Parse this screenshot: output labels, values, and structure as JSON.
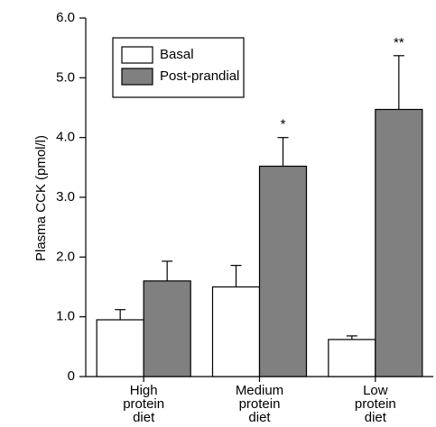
{
  "chart_data": {
    "type": "bar",
    "y_label": "Plasma CCK (pmol/l)",
    "categories": [
      "High protein diet",
      "Medium protein diet",
      "Low protein diet"
    ],
    "series": [
      {
        "name": "Basal",
        "color": "#ffffff",
        "values": [
          0.95,
          1.5,
          0.62
        ],
        "errors": [
          0.17,
          0.36,
          0.06
        ]
      },
      {
        "name": "Post-prandial",
        "color": "#808080",
        "values": [
          1.6,
          3.52,
          4.47
        ],
        "errors": [
          0.33,
          0.48,
          0.9
        ],
        "labels": [
          null,
          "*",
          "**"
        ]
      }
    ],
    "ylim": [
      0,
      6
    ],
    "yticks": [
      0,
      {
        "value": 1,
        "label": "1.0"
      },
      {
        "value": 2,
        "label": "2.0"
      },
      {
        "value": 3,
        "label": "3.0"
      },
      {
        "value": 4,
        "label": "4.0"
      },
      {
        "value": 5,
        "label": "5.0"
      },
      {
        "value": 6,
        "label": "6.0"
      }
    ],
    "legend": "upper left"
  }
}
